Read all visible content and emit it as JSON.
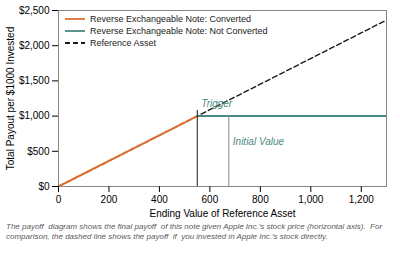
{
  "chart_data": {
    "type": "line",
    "xlabel": "Ending Value of Reference Asset",
    "ylabel": "Total Payout per $1000 Invested",
    "xlim": [
      0,
      1300
    ],
    "ylim": [
      0,
      2500
    ],
    "xticks": [
      0,
      200,
      400,
      600,
      800,
      {
        "value": 1000,
        "label": "1,000"
      },
      {
        "value": 1200,
        "label": "1,200"
      }
    ],
    "yticks": [
      {
        "value": 0,
        "label": "$0"
      },
      {
        "value": 500,
        "label": "$500"
      },
      {
        "value": 1000,
        "label": "$1,000"
      },
      {
        "value": 1500,
        "label": "$1,500"
      },
      {
        "value": 2000,
        "label": "$2,000"
      },
      {
        "value": 2500,
        "label": "$2,500"
      }
    ],
    "series": [
      {
        "name": "Reverse Exchangeable Note: Converted",
        "color": "#E07030",
        "line_style": "solid",
        "x": [
          0,
          550
        ],
        "values": [
          0,
          1000
        ]
      },
      {
        "name": "Reverse Exchangeable Note: Not Converted",
        "color": "#4A8A80",
        "line_style": "solid",
        "x": [
          550,
          1300
        ],
        "values": [
          1000,
          1000
        ]
      },
      {
        "name": "Reference Asset",
        "color": "#1a1a1a",
        "line_style": "dashed",
        "x": [
          0,
          1300
        ],
        "values": [
          0,
          2363.6363636363635
        ]
      }
    ],
    "vlines": [
      {
        "x": 550,
        "y0": 0,
        "y1": 1080,
        "color": "#1a1a1a"
      },
      {
        "x": 675,
        "y0": 0,
        "y1": 1000,
        "color": "#888888"
      }
    ],
    "annotations": [
      {
        "text": "Trigger",
        "x": 550,
        "y": 1080,
        "color": "#4A8A80"
      },
      {
        "text": "Initial Value",
        "x": 675,
        "y": 1000,
        "color": "#4A8A80"
      }
    ],
    "caption": "The payoff  diagram shows the final payoff  of this note given Apple Inc.'s stock price (horizontal axis).  For\ncomparison, the dashed line shows the payoff  if  you invested in Apple Inc.'s stock directly.",
    "legend": "upper left",
    "grid": false
  }
}
